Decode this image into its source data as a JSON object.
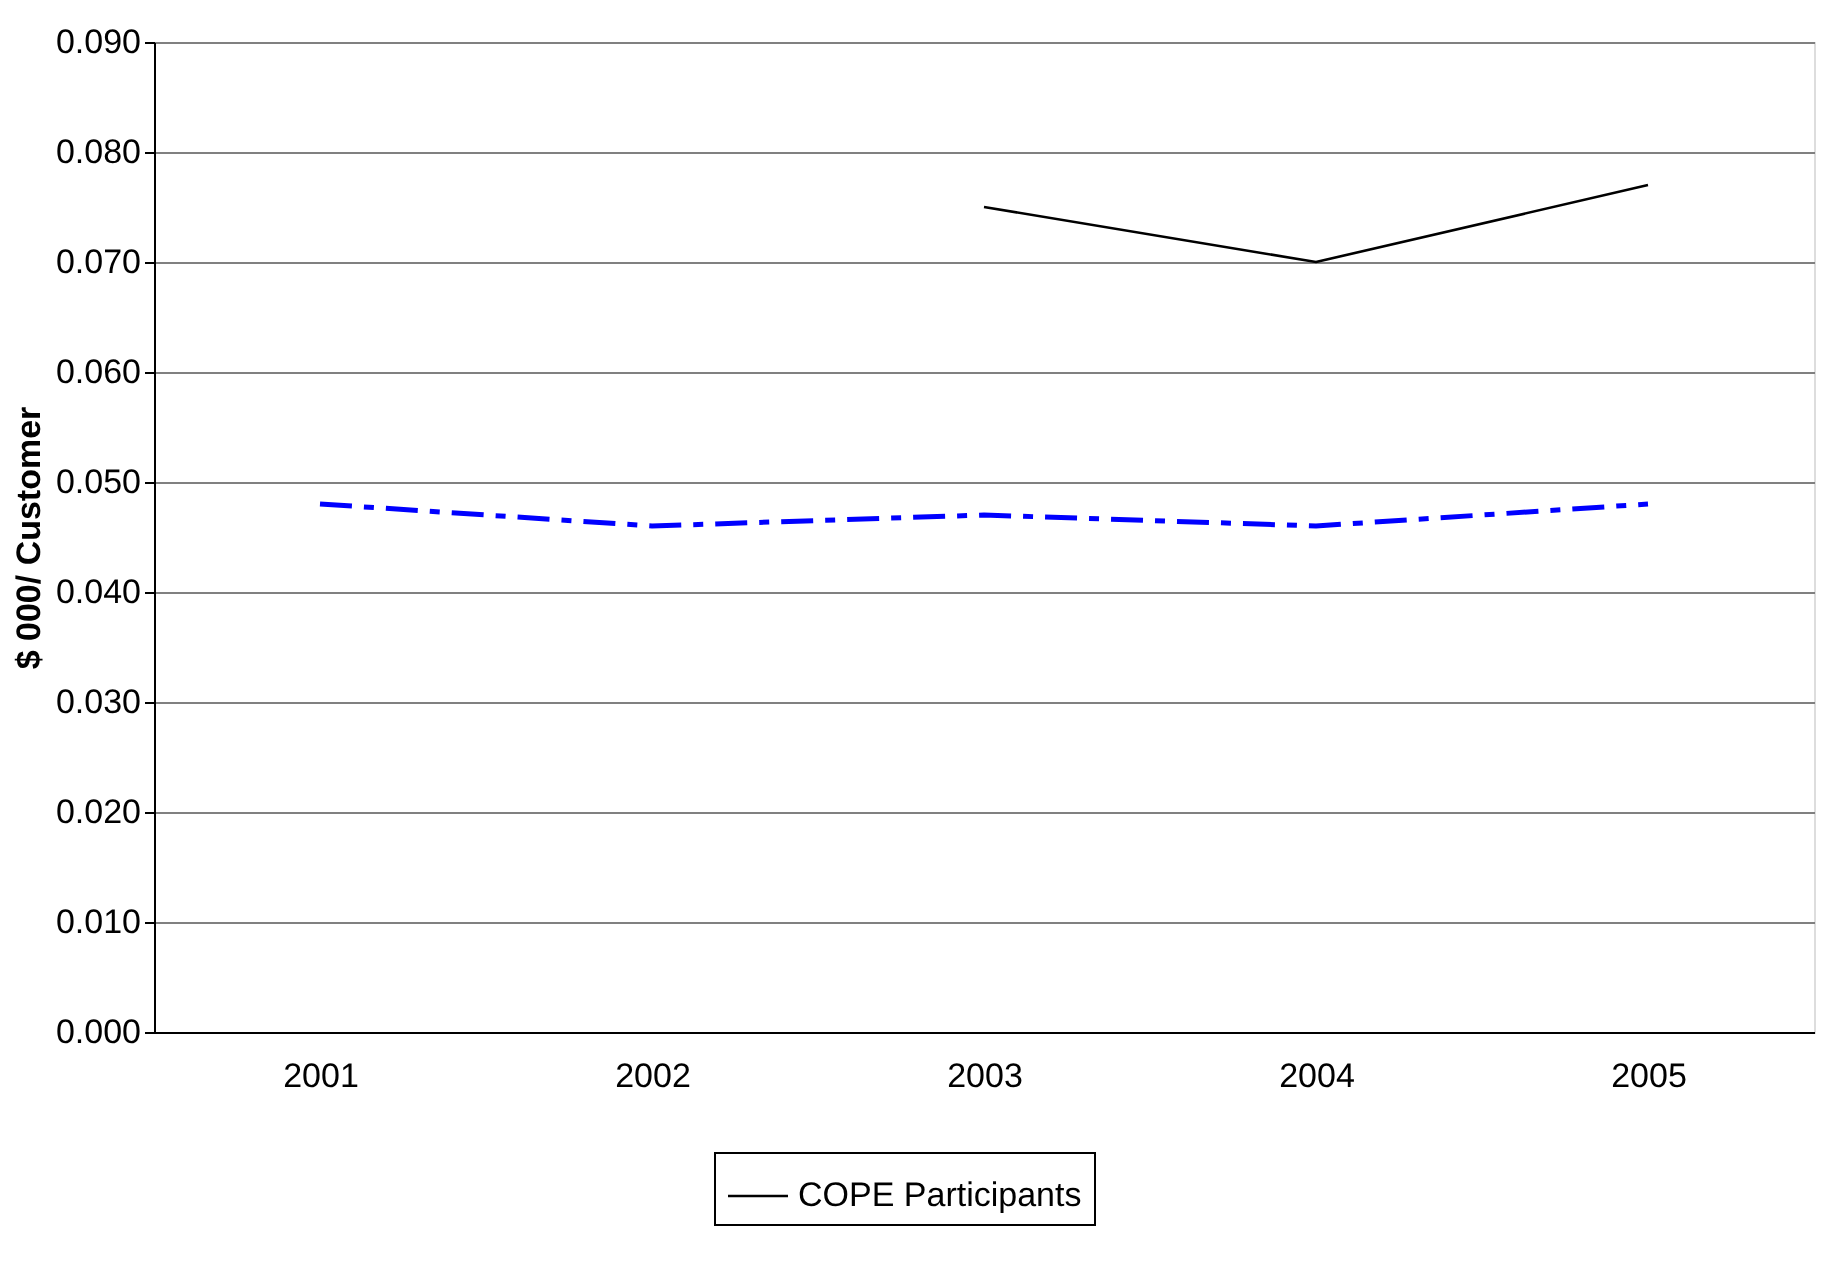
{
  "chart_data": {
    "type": "line",
    "ylabel": "$ 000/ Customer",
    "categories": [
      "2001",
      "2002",
      "2003",
      "2004",
      "2005"
    ],
    "series": [
      {
        "name": "COPE Participants",
        "color": "#000000",
        "line_style": "solid",
        "values": [
          null,
          null,
          0.075,
          0.07,
          0.077
        ]
      },
      {
        "color": "#0000ff",
        "line_style": "dashed",
        "values": [
          0.048,
          0.046,
          0.047,
          0.046,
          0.048
        ]
      }
    ],
    "ylim": [
      0,
      0.09
    ],
    "yticks": [
      {
        "value": 0,
        "label": "0.000"
      },
      {
        "value": 0.01,
        "label": "0.010"
      },
      {
        "value": 0.02,
        "label": "0.020"
      },
      {
        "value": 0.03,
        "label": "0.030"
      },
      {
        "value": 0.04,
        "label": "0.040"
      },
      {
        "value": 0.05,
        "label": "0.050"
      },
      {
        "value": 0.06,
        "label": "0.060"
      },
      {
        "value": 0.07,
        "label": "0.070"
      },
      {
        "value": 0.08,
        "label": "0.080"
      },
      {
        "value": 0.09,
        "label": "0.090"
      }
    ],
    "grid": "y",
    "legend": "bottom",
    "marker": "none"
  }
}
